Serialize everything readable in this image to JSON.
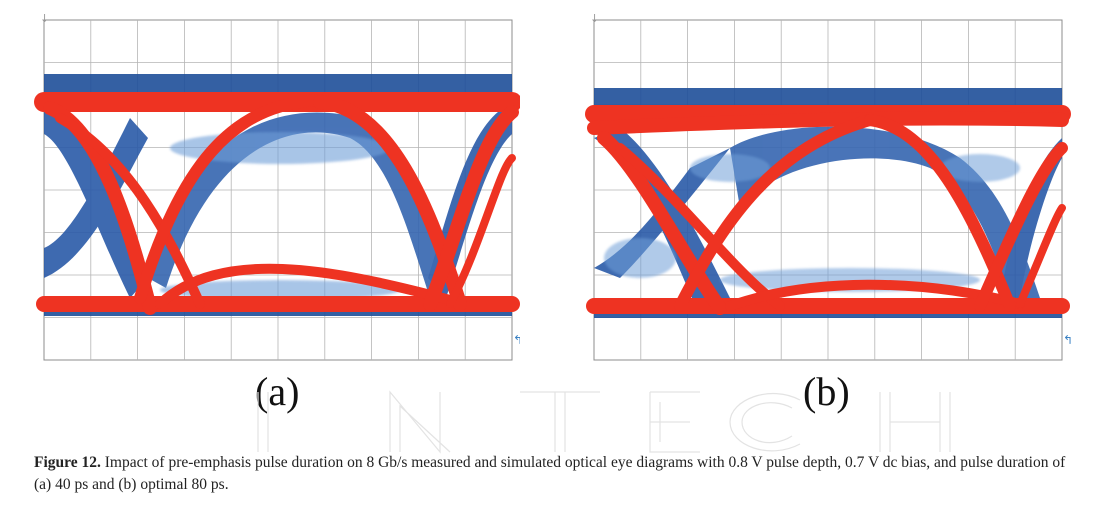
{
  "figure": {
    "panels": [
      {
        "label": "(a)",
        "pulse_duration": "40 ps"
      },
      {
        "label": "(b)",
        "pulse_duration": "optimal 80 ps"
      }
    ],
    "caption_label": "Figure 12.",
    "caption_text": " Impact of pre-emphasis pulse duration on 8 Gb/s measured and simulated optical eye diagrams with 0.8 V pulse depth, 0.7 V dc bias, and pulse duration of (a) 40 ps and (b) optimal 80 ps.",
    "watermark_letters": [
      "I",
      "N",
      "T",
      "E",
      "C",
      "H"
    ]
  },
  "colors": {
    "measured": "#1f4f9a",
    "measured_light": "#6f9fd8",
    "simulated": "#ee3322",
    "grid": "#b5b5b5",
    "frame": "#8c8c8c"
  }
}
